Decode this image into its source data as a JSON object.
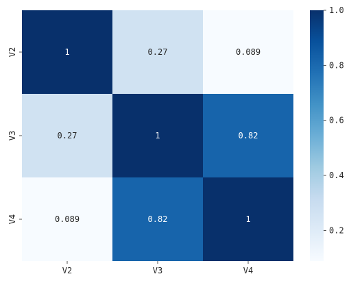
{
  "chart_data": {
    "type": "heatmap",
    "title": "",
    "xlabel": "",
    "ylabel": "",
    "x_categories": [
      "V2",
      "V3",
      "V4"
    ],
    "y_categories": [
      "V2",
      "V3",
      "V4"
    ],
    "values": [
      [
        1,
        0.27,
        0.089
      ],
      [
        0.27,
        1,
        0.82
      ],
      [
        0.089,
        0.82,
        1
      ]
    ],
    "cell_labels": [
      [
        "1",
        "0.27",
        "0.089"
      ],
      [
        "0.27",
        "1",
        "0.82"
      ],
      [
        "0.089",
        "0.82",
        "1"
      ]
    ],
    "colormap": "Blues",
    "vmin": 0.089,
    "vmax": 1.0,
    "colorbar": {
      "ticks": [
        0.2,
        0.4,
        0.6,
        0.8,
        1.0
      ],
      "tick_labels": [
        "0.2",
        "0.4",
        "0.6",
        "0.8",
        "1.0"
      ],
      "placement": "right"
    },
    "colors": {
      "low": "#f7fbff",
      "high": "#08306b"
    }
  }
}
